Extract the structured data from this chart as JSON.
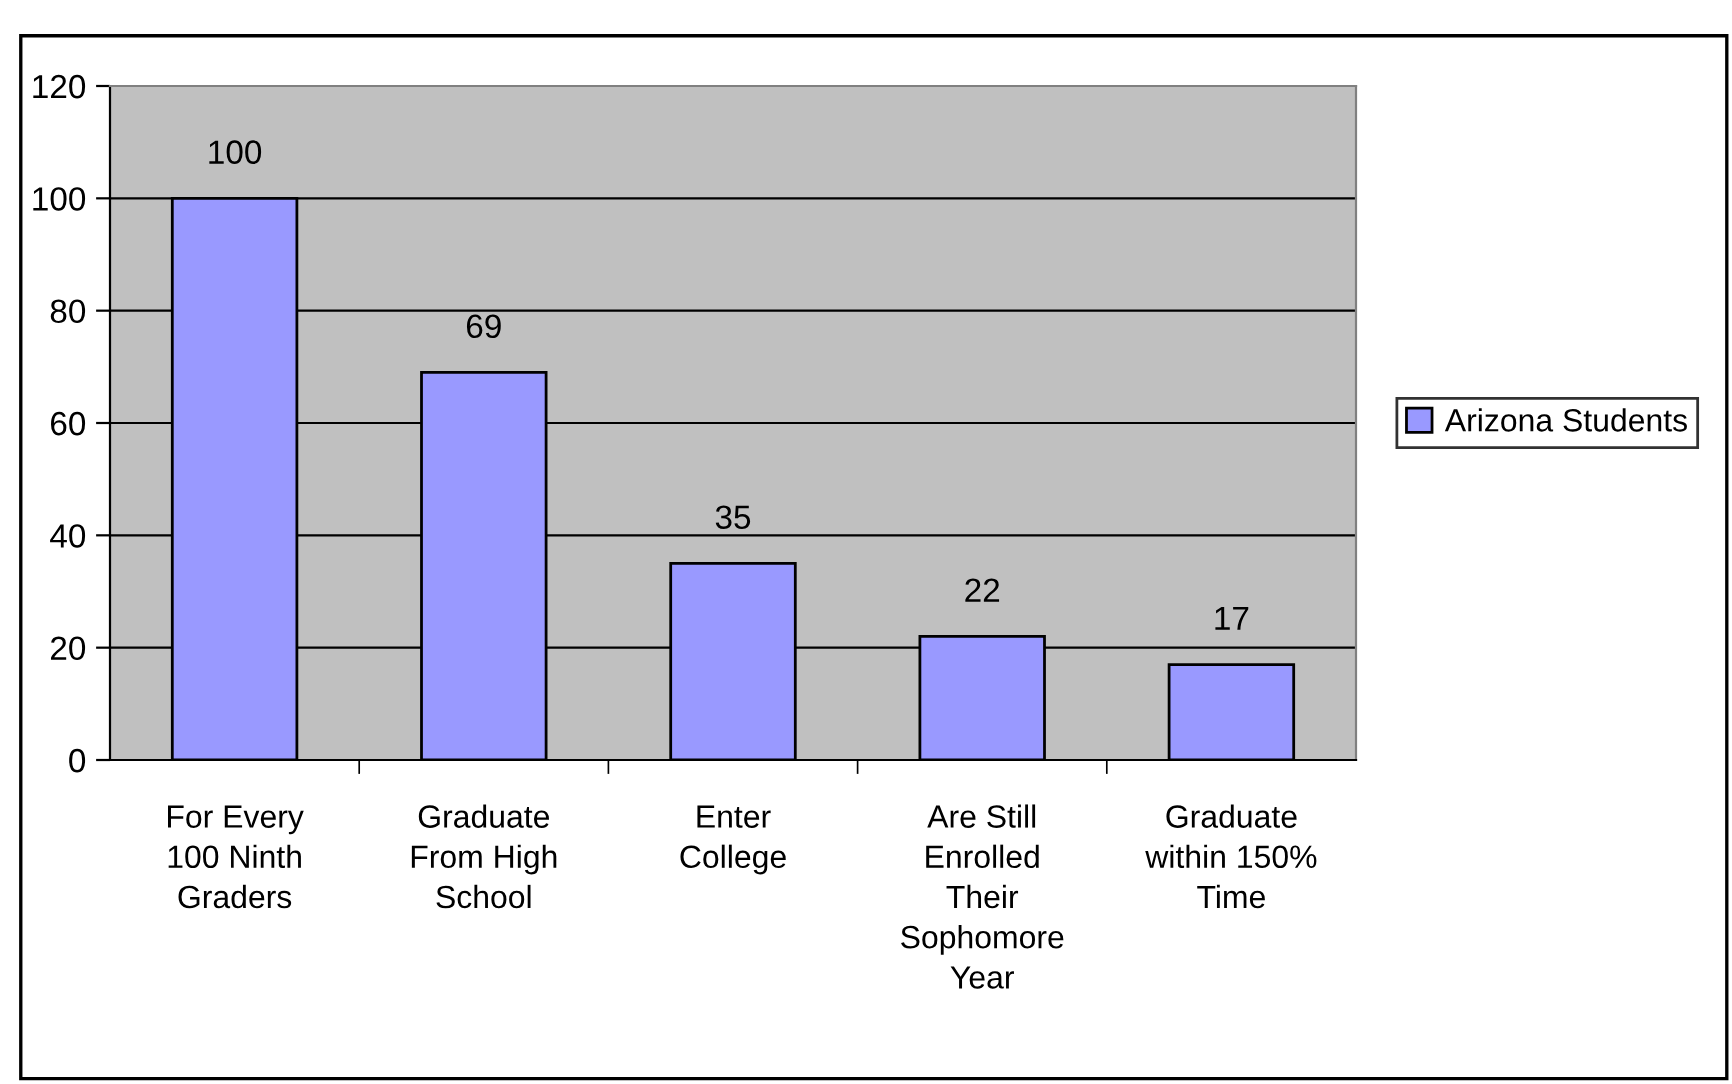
{
  "chart_data": {
    "type": "bar",
    "categories": [
      "For Every 100 Ninth Graders",
      "Graduate From High School",
      "Enter College",
      "Are Still Enrolled Their Sophomore Year",
      "Graduate within 150% Time"
    ],
    "series": [
      {
        "name": "Arizona Students",
        "color": "#9999ff",
        "values": [
          100,
          69,
          35,
          22,
          17
        ]
      }
    ],
    "ylim": [
      0,
      120
    ],
    "yticks": [
      0,
      20,
      40,
      60,
      80,
      100,
      120
    ],
    "grid": "y",
    "legend": "right",
    "data_labels": true
  }
}
